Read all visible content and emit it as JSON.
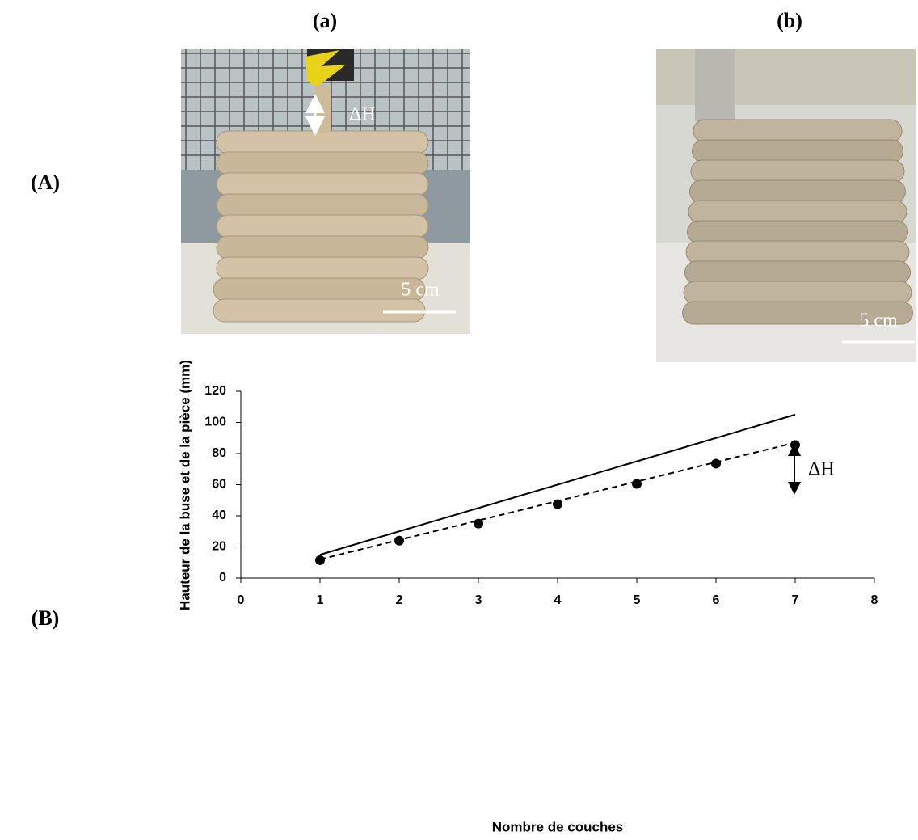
{
  "panels": [
    {
      "label": "(a)",
      "annotation": "ΔH",
      "scale": "5 cm"
    },
    {
      "label": "(b)",
      "scale": "5 cm"
    }
  ],
  "rows": [
    "(A)",
    "(B)"
  ],
  "chart_data": {
    "type": "scatter",
    "x_label": "Nombre de couches",
    "y_label": "Hauteur de la buse et de la pièce (mm)",
    "annotation": "ΔH",
    "xlim": [
      0,
      8
    ],
    "xticks": [
      0,
      1,
      2,
      3,
      4,
      5,
      6,
      7,
      8
    ],
    "ylim": [
      0,
      120
    ],
    "yticks": [
      0,
      20,
      40,
      60,
      80,
      100,
      120
    ],
    "series": [
      {
        "color": "#000000",
        "marker": "circle",
        "x": [
          1,
          2,
          3,
          4,
          5,
          6,
          7
        ],
        "values": [
          11.5,
          24,
          35,
          47.5,
          60.5,
          73.5,
          85.5
        ]
      },
      {
        "color": "#000000",
        "line": "solid",
        "x": [
          1,
          7
        ],
        "values": [
          15,
          105
        ]
      },
      {
        "color": "#000000",
        "line": "dashed",
        "x": [
          1,
          7
        ],
        "values": [
          12,
          87
        ]
      }
    ]
  }
}
